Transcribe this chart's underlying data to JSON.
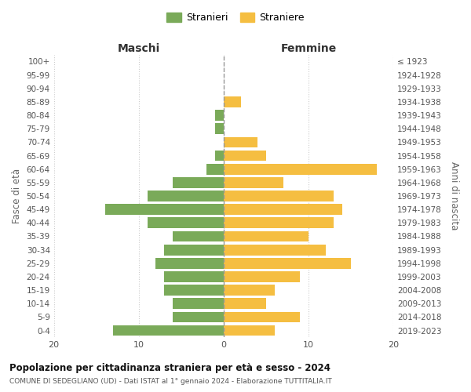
{
  "age_groups": [
    "100+",
    "95-99",
    "90-94",
    "85-89",
    "80-84",
    "75-79",
    "70-74",
    "65-69",
    "60-64",
    "55-59",
    "50-54",
    "45-49",
    "40-44",
    "35-39",
    "30-34",
    "25-29",
    "20-24",
    "15-19",
    "10-14",
    "5-9",
    "0-4"
  ],
  "birth_years": [
    "≤ 1923",
    "1924-1928",
    "1929-1933",
    "1934-1938",
    "1939-1943",
    "1944-1948",
    "1949-1953",
    "1954-1958",
    "1959-1963",
    "1964-1968",
    "1969-1973",
    "1974-1978",
    "1979-1983",
    "1984-1988",
    "1989-1993",
    "1994-1998",
    "1999-2003",
    "2004-2008",
    "2009-2013",
    "2014-2018",
    "2019-2023"
  ],
  "maschi": [
    0,
    0,
    0,
    0,
    1,
    1,
    0,
    1,
    2,
    6,
    9,
    14,
    9,
    6,
    7,
    8,
    7,
    7,
    6,
    6,
    13
  ],
  "femmine": [
    0,
    0,
    0,
    2,
    0,
    0,
    4,
    5,
    18,
    7,
    13,
    14,
    13,
    10,
    12,
    15,
    9,
    6,
    5,
    9,
    6
  ],
  "color_maschi": "#7aaa59",
  "color_femmine": "#f5be41",
  "title": "Popolazione per cittadinanza straniera per età e sesso - 2024",
  "subtitle": "COMUNE DI SEDEGLIANO (UD) - Dati ISTAT al 1° gennaio 2024 - Elaborazione TUTTITALIA.IT",
  "header_left": "Maschi",
  "header_right": "Femmine",
  "ylabel_left": "Fasce di età",
  "ylabel_right": "Anni di nascita",
  "legend_maschi": "Stranieri",
  "legend_femmine": "Straniere",
  "xlim": 20,
  "background_color": "#ffffff",
  "grid_color": "#cccccc"
}
